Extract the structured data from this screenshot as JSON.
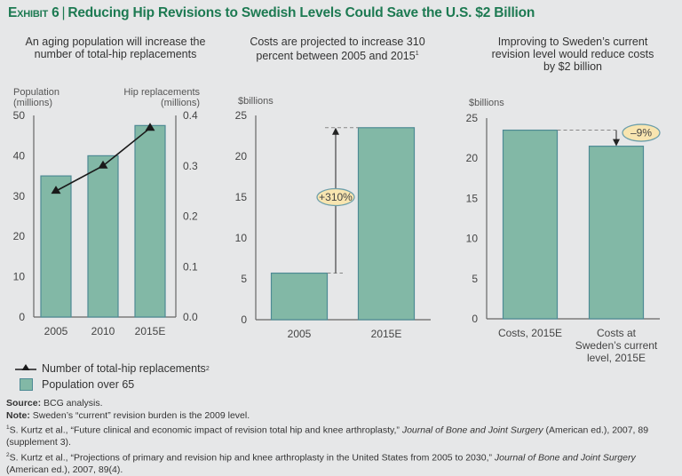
{
  "header": {
    "exhibit": "Exhibit 6",
    "title": "Reducing Hip Revisions to Swedish Levels Could Save the U.S. $2 Billion",
    "title_color": "#1d7a52"
  },
  "colors": {
    "bar_fill": "#82b8a6",
    "bar_stroke": "#4d8a94",
    "line": "#1a1a1a",
    "callout_fill": "#f8e5b0",
    "callout_stroke": "#6d9fab",
    "axis": "#666666",
    "background": "#e6e7e8"
  },
  "chart_data": [
    {
      "type": "bar+line",
      "title": "An aging population will increase the number of total-hip replacements",
      "ylabel": "Population (millions)",
      "y2label": "Hip replacements (millions)",
      "categories": [
        "2005",
        "2010",
        "2015E"
      ],
      "ylim": [
        0,
        50
      ],
      "yticks": [
        "0",
        "10",
        "20",
        "30",
        "40",
        "50"
      ],
      "y2lim": [
        0,
        0.4
      ],
      "y2ticks": [
        "0.0",
        "0.1",
        "0.2",
        "0.3",
        "0.4"
      ],
      "series": [
        {
          "name": "Population over 65",
          "type": "bar",
          "axis": "left",
          "values": [
            35,
            40,
            47.5
          ]
        },
        {
          "name": "Number of total-hip replacements",
          "type": "line",
          "axis": "right",
          "marker": "triangle",
          "values": [
            0.25,
            0.3,
            0.375
          ]
        }
      ],
      "legend": {
        "position": "bottom-left",
        "items": [
          {
            "label": "Number of total-hip replacements",
            "footnote": "2",
            "symbol": "line-triangle"
          },
          {
            "label": "Population over 65",
            "symbol": "square"
          }
        ]
      }
    },
    {
      "type": "bar",
      "title": "Costs are projected to increase 310 percent between 2005 and 2015",
      "title_footnote": "1",
      "ylabel": "$billions",
      "categories": [
        "2005",
        "2015E"
      ],
      "values": [
        5.7,
        23.5
      ],
      "ylim": [
        0,
        25
      ],
      "yticks": [
        "0",
        "5",
        "10",
        "15",
        "20",
        "25"
      ],
      "annotation": {
        "label": "+310%",
        "direction": "up"
      }
    },
    {
      "type": "bar",
      "title": "Improving to Sweden’s current revision level would reduce costs by $2 billion",
      "ylabel": "$billions",
      "categories": [
        "Costs, 2015E",
        "Costs at Sweden’s current level, 2015E"
      ],
      "category_lines": [
        [
          "Costs, 2015E"
        ],
        [
          "Costs at",
          "Sweden’s current",
          "level, 2015E"
        ]
      ],
      "values": [
        23.5,
        21.5
      ],
      "ylim": [
        0,
        25
      ],
      "yticks": [
        "0",
        "5",
        "10",
        "15",
        "20",
        "25"
      ],
      "annotation": {
        "label": "–9%",
        "direction": "down"
      }
    }
  ],
  "footnotes": {
    "source_label": "Source:",
    "source_text": " BCG analysis.",
    "note_label": "Note:",
    "note_text": " Sweden’s “current” revision burden is the 2009 level.",
    "ref1_num": "1",
    "ref1_text": "S. Kurtz et al., “Future clinical and economic impact of revision total hip and knee arthroplasty,” ",
    "ref1_journal": "Journal of Bone and Joint Surgery",
    "ref1_tail": " (American ed.), 2007, 89 (supplement 3).",
    "ref2_num": "2",
    "ref2_text": "S. Kurtz et al., “Projections of primary and revision hip and knee arthroplasty in the United States from 2005 to 2030,” ",
    "ref2_journal": "Journal of Bone and Joint Surgery",
    "ref2_tail": " (American ed.), 2007, 89(4)."
  }
}
